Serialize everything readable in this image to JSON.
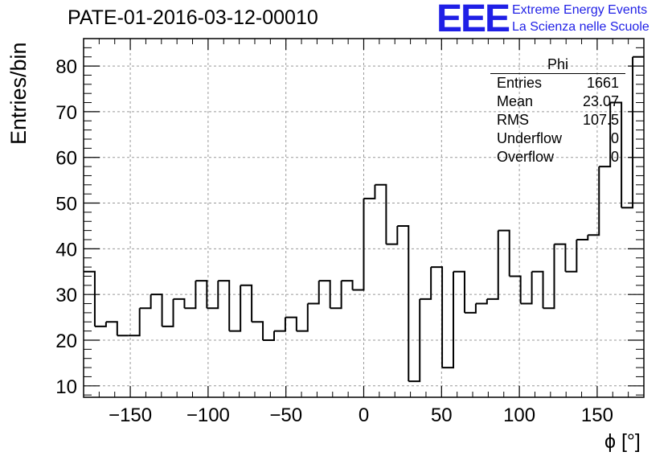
{
  "header": {
    "title": "PATE-01-2016-03-12-00010",
    "logo": "EEE",
    "logo_line1": "Extreme Energy Events",
    "logo_line2": "La Scienza nelle Scuole"
  },
  "stats": {
    "name": "Phi",
    "rows": [
      {
        "label": "Entries",
        "value": "1661"
      },
      {
        "label": "Mean",
        "value": "23.07"
      },
      {
        "label": "RMS",
        "value": "107.5"
      },
      {
        "label": "Underflow",
        "value": "0"
      },
      {
        "label": "Overflow",
        "value": "0"
      }
    ]
  },
  "chart_data": {
    "type": "bar",
    "title": "PATE-01-2016-03-12-00010",
    "xlabel": "ϕ [°]",
    "ylabel": "Entries/bin",
    "xlim": [
      -180,
      180
    ],
    "ylim": [
      7.5,
      86
    ],
    "bin_width": 7.2,
    "xticks": [
      -150,
      -100,
      -50,
      0,
      50,
      100,
      150
    ],
    "xtick_labels": [
      "−150",
      "−100",
      "−50",
      "0",
      "50",
      "100",
      "150"
    ],
    "yticks": [
      10,
      20,
      30,
      40,
      50,
      60,
      70,
      80
    ],
    "ytick_labels": [
      "10",
      "20",
      "30",
      "40",
      "50",
      "60",
      "70",
      "80"
    ],
    "grid": true,
    "values": [
      35,
      23,
      24,
      21,
      21,
      27,
      30,
      23,
      29,
      27,
      33,
      27,
      33,
      22,
      32,
      24,
      20,
      22,
      25,
      22,
      28,
      33,
      27,
      33,
      31,
      51,
      54,
      41,
      45,
      11,
      29,
      36,
      14,
      35,
      26,
      28,
      29,
      44,
      34,
      28,
      35,
      27,
      41,
      35,
      42,
      43,
      58,
      72,
      49,
      82
    ]
  }
}
